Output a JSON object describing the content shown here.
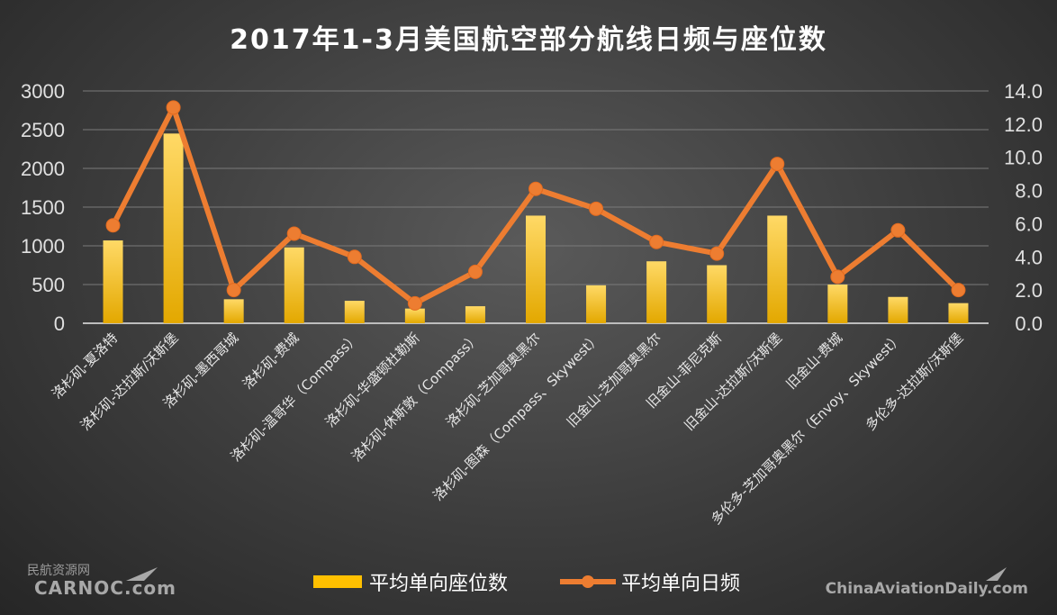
{
  "chart_data": {
    "type": "bar+line",
    "title": "2017年1-3月美国航空部分航线日频与座位数",
    "categories": [
      "洛杉矶-夏洛特",
      "洛杉矶-达拉斯/沃斯堡",
      "洛杉矶-墨西哥城",
      "洛杉矶-费城",
      "洛杉矶-温哥华（Compass）",
      "洛杉矶-华盛顿杜勒斯",
      "洛杉矶-休斯敦（Compass）",
      "洛杉矶-芝加哥奥黑尔",
      "洛杉矶-图森（Compass、Skywest）",
      "旧金山-芝加哥奥黑尔",
      "旧金山-菲尼克斯",
      "旧金山-达拉斯/沃斯堡",
      "旧金山-费城",
      "多伦多-芝加哥奥黑尔（Envoy、Skywest）",
      "多伦多-达拉斯/沃斯堡"
    ],
    "series": [
      {
        "name": "平均单向座位数",
        "type": "bar",
        "axis": "left",
        "color": "#ffc000",
        "values": [
          1070,
          2450,
          310,
          980,
          290,
          190,
          220,
          1390,
          490,
          800,
          750,
          1390,
          500,
          340,
          260
        ]
      },
      {
        "name": "平均单向日频",
        "type": "line",
        "axis": "right",
        "color": "#ed7d31",
        "values": [
          5.9,
          13.0,
          2.0,
          5.4,
          4.0,
          1.2,
          3.1,
          8.1,
          6.9,
          4.9,
          4.2,
          9.6,
          2.8,
          5.6,
          2.0
        ]
      }
    ],
    "y_left": {
      "ylim": [
        0,
        3000
      ],
      "ticks": [
        "0",
        "500",
        "1000",
        "1500",
        "2000",
        "2500",
        "3000"
      ]
    },
    "y_right": {
      "ylim": [
        0,
        14
      ],
      "ticks": [
        "0.0",
        "2.0",
        "4.0",
        "6.0",
        "8.0",
        "10.0",
        "12.0",
        "14.0"
      ]
    },
    "grid": true,
    "legend_position": "bottom"
  },
  "watermark": {
    "left_cn": "民航资源网",
    "left_en": "CARNOC.com",
    "right": "ChinaAviationDaily.com"
  }
}
